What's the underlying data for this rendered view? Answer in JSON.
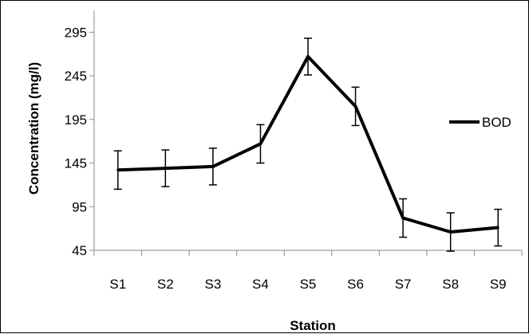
{
  "chart_data": {
    "type": "line",
    "title": "",
    "xlabel": "Station",
    "ylabel": "Concentration (mg/l)",
    "categories": [
      "S1",
      "S2",
      "S3",
      "S4",
      "S5",
      "S6",
      "S7",
      "S8",
      "S9"
    ],
    "ylim": [
      45,
      320
    ],
    "yticks": [
      45,
      95,
      145,
      195,
      245,
      295
    ],
    "grid": false,
    "legend_position": "right",
    "series": [
      {
        "name": "BOD",
        "color": "#000000",
        "values": [
          137,
          139,
          141,
          167,
          267,
          210,
          82,
          66,
          71
        ],
        "error": [
          22,
          21,
          21,
          22,
          21,
          22,
          22,
          22,
          21
        ]
      }
    ]
  }
}
